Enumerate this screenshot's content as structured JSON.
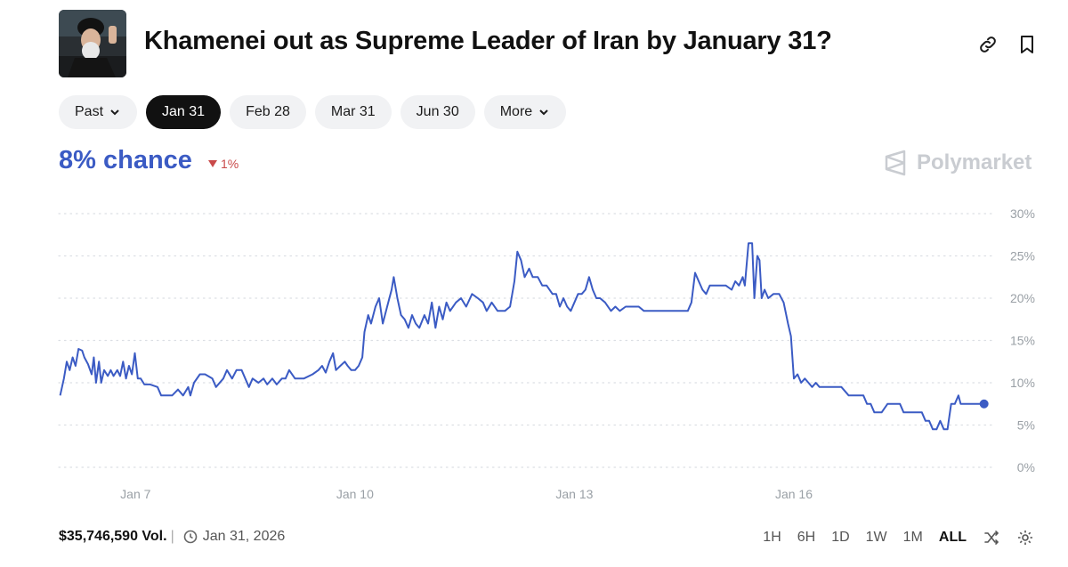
{
  "header": {
    "title": "Khamenei out as Supreme Leader of Iran by January 31?",
    "avatar_icon": "portrait-avatar",
    "actions": [
      "link-icon",
      "bookmark-icon"
    ]
  },
  "tabs": [
    {
      "label": "Past",
      "dropdown": true,
      "active": false
    },
    {
      "label": "Jan 31",
      "dropdown": false,
      "active": true
    },
    {
      "label": "Feb 28",
      "dropdown": false,
      "active": false
    },
    {
      "label": "Mar 31",
      "dropdown": false,
      "active": false
    },
    {
      "label": "Jun 30",
      "dropdown": false,
      "active": false
    },
    {
      "label": "More",
      "dropdown": true,
      "active": false
    }
  ],
  "summary": {
    "chance": "8% chance",
    "delta": "1%",
    "delta_direction": "down",
    "brand": "Polymarket"
  },
  "footer": {
    "volume": "$35,746,590 Vol.",
    "date": "Jan 31, 2026",
    "ranges": [
      "1H",
      "6H",
      "1D",
      "1W",
      "1M",
      "ALL"
    ],
    "active_range": "ALL"
  },
  "colors": {
    "line": "#3b5bc4",
    "delta_down": "#c94a4a",
    "grid": "#dcdfe4"
  },
  "chart_data": {
    "type": "line",
    "title": "",
    "xlabel": "",
    "ylabel": "",
    "ylim": [
      0,
      30
    ],
    "xlim": [
      5.95,
      18.75
    ],
    "y_ticks": [
      0,
      5,
      10,
      15,
      20,
      25,
      30
    ],
    "y_tick_labels": [
      "0%",
      "5%",
      "10%",
      "15%",
      "20%",
      "25%",
      "30%"
    ],
    "x_ticks": [
      7,
      10,
      13,
      16
    ],
    "x_tick_labels": [
      "Jan 7",
      "Jan 10",
      "Jan 13",
      "Jan 16"
    ],
    "x_unit": "day of January 2026",
    "grid": true,
    "series": [
      {
        "values": [
          [
            5.97,
            8.5
          ],
          [
            6.02,
            10.5
          ],
          [
            6.06,
            12.5
          ],
          [
            6.1,
            11.5
          ],
          [
            6.14,
            13
          ],
          [
            6.18,
            12
          ],
          [
            6.22,
            14
          ],
          [
            6.27,
            13.8
          ],
          [
            6.3,
            13
          ],
          [
            6.35,
            12.2
          ],
          [
            6.4,
            11
          ],
          [
            6.43,
            13
          ],
          [
            6.46,
            10
          ],
          [
            6.5,
            12.5
          ],
          [
            6.53,
            10
          ],
          [
            6.57,
            11.5
          ],
          [
            6.62,
            10.8
          ],
          [
            6.66,
            11.5
          ],
          [
            6.7,
            10.8
          ],
          [
            6.75,
            11.5
          ],
          [
            6.79,
            10.8
          ],
          [
            6.83,
            12.5
          ],
          [
            6.87,
            10.5
          ],
          [
            6.91,
            12
          ],
          [
            6.95,
            11
          ],
          [
            6.99,
            13.5
          ],
          [
            7.03,
            10.5
          ],
          [
            7.07,
            10.5
          ],
          [
            7.12,
            9.8
          ],
          [
            7.2,
            9.8
          ],
          [
            7.3,
            9.5
          ],
          [
            7.35,
            8.5
          ],
          [
            7.5,
            8.5
          ],
          [
            7.58,
            9.2
          ],
          [
            7.65,
            8.5
          ],
          [
            7.72,
            9.5
          ],
          [
            7.75,
            8.5
          ],
          [
            7.8,
            10
          ],
          [
            7.88,
            11
          ],
          [
            7.95,
            11
          ],
          [
            8.05,
            10.5
          ],
          [
            8.1,
            9.5
          ],
          [
            8.2,
            10.5
          ],
          [
            8.25,
            11.5
          ],
          [
            8.32,
            10.5
          ],
          [
            8.38,
            11.5
          ],
          [
            8.45,
            11.5
          ],
          [
            8.5,
            10.5
          ],
          [
            8.55,
            9.5
          ],
          [
            8.6,
            10.5
          ],
          [
            8.68,
            10
          ],
          [
            8.75,
            10.5
          ],
          [
            8.8,
            9.8
          ],
          [
            8.87,
            10.5
          ],
          [
            8.93,
            9.8
          ],
          [
            9.0,
            10.5
          ],
          [
            9.05,
            10.5
          ],
          [
            9.1,
            11.5
          ],
          [
            9.18,
            10.5
          ],
          [
            9.3,
            10.5
          ],
          [
            9.42,
            11
          ],
          [
            9.5,
            11.5
          ],
          [
            9.55,
            12
          ],
          [
            9.6,
            11.2
          ],
          [
            9.65,
            12.5
          ],
          [
            9.7,
            13.5
          ],
          [
            9.74,
            11.5
          ],
          [
            9.8,
            12
          ],
          [
            9.86,
            12.5
          ],
          [
            9.9,
            12
          ],
          [
            9.95,
            11.5
          ],
          [
            10.0,
            11.5
          ],
          [
            10.05,
            12
          ],
          [
            10.1,
            13
          ],
          [
            10.13,
            16
          ],
          [
            10.18,
            18
          ],
          [
            10.22,
            17
          ],
          [
            10.28,
            19
          ],
          [
            10.33,
            20
          ],
          [
            10.38,
            17
          ],
          [
            10.44,
            19
          ],
          [
            10.5,
            21
          ],
          [
            10.53,
            22.5
          ],
          [
            10.58,
            20
          ],
          [
            10.63,
            18
          ],
          [
            10.68,
            17.5
          ],
          [
            10.73,
            16.5
          ],
          [
            10.78,
            18
          ],
          [
            10.83,
            17
          ],
          [
            10.88,
            16.5
          ],
          [
            10.95,
            18
          ],
          [
            11.0,
            17
          ],
          [
            11.05,
            19.5
          ],
          [
            11.1,
            16.5
          ],
          [
            11.15,
            19
          ],
          [
            11.2,
            17.5
          ],
          [
            11.25,
            19.5
          ],
          [
            11.3,
            18.5
          ],
          [
            11.38,
            19.5
          ],
          [
            11.45,
            20
          ],
          [
            11.52,
            19
          ],
          [
            11.6,
            20.5
          ],
          [
            11.68,
            20
          ],
          [
            11.75,
            19.5
          ],
          [
            11.8,
            18.5
          ],
          [
            11.87,
            19.5
          ],
          [
            11.95,
            18.5
          ],
          [
            12.05,
            18.5
          ],
          [
            12.12,
            19
          ],
          [
            12.18,
            22
          ],
          [
            12.22,
            25.5
          ],
          [
            12.27,
            24.5
          ],
          [
            12.32,
            22.5
          ],
          [
            12.38,
            23.5
          ],
          [
            12.43,
            22.5
          ],
          [
            12.5,
            22.5
          ],
          [
            12.56,
            21.5
          ],
          [
            12.62,
            21.5
          ],
          [
            12.7,
            20.5
          ],
          [
            12.75,
            20.5
          ],
          [
            12.8,
            19
          ],
          [
            12.85,
            20
          ],
          [
            12.9,
            19
          ],
          [
            12.95,
            18.5
          ],
          [
            13.0,
            19.5
          ],
          [
            13.05,
            20.5
          ],
          [
            13.1,
            20.5
          ],
          [
            13.15,
            21
          ],
          [
            13.2,
            22.5
          ],
          [
            13.25,
            21
          ],
          [
            13.3,
            20
          ],
          [
            13.35,
            20
          ],
          [
            13.42,
            19.5
          ],
          [
            13.5,
            18.5
          ],
          [
            13.56,
            19
          ],
          [
            13.62,
            18.5
          ],
          [
            13.7,
            19
          ],
          [
            13.8,
            19
          ],
          [
            13.88,
            19
          ],
          [
            13.95,
            18.5
          ],
          [
            14.05,
            18.5
          ],
          [
            14.15,
            18.5
          ],
          [
            14.25,
            18.5
          ],
          [
            14.35,
            18.5
          ],
          [
            14.45,
            18.5
          ],
          [
            14.55,
            18.5
          ],
          [
            14.6,
            19.5
          ],
          [
            14.65,
            23
          ],
          [
            14.7,
            22
          ],
          [
            14.75,
            21
          ],
          [
            14.8,
            20.5
          ],
          [
            14.85,
            21.5
          ],
          [
            14.92,
            21.5
          ],
          [
            15.0,
            21.5
          ],
          [
            15.07,
            21.5
          ],
          [
            15.15,
            21
          ],
          [
            15.2,
            22
          ],
          [
            15.25,
            21.5
          ],
          [
            15.3,
            22.5
          ],
          [
            15.33,
            21.5
          ],
          [
            15.38,
            26.5
          ],
          [
            15.43,
            26.5
          ],
          [
            15.46,
            20
          ],
          [
            15.5,
            25
          ],
          [
            15.53,
            24.5
          ],
          [
            15.56,
            20
          ],
          [
            15.6,
            21
          ],
          [
            15.65,
            20
          ],
          [
            15.72,
            20.5
          ],
          [
            15.8,
            20.5
          ],
          [
            15.86,
            19.5
          ],
          [
            15.92,
            17
          ],
          [
            15.96,
            15.5
          ],
          [
            16.0,
            10.5
          ],
          [
            16.05,
            11
          ],
          [
            16.1,
            10
          ],
          [
            16.15,
            10.5
          ],
          [
            16.2,
            10
          ],
          [
            16.25,
            9.5
          ],
          [
            16.3,
            10
          ],
          [
            16.35,
            9.5
          ],
          [
            16.45,
            9.5
          ],
          [
            16.55,
            9.5
          ],
          [
            16.65,
            9.5
          ],
          [
            16.75,
            8.5
          ],
          [
            16.85,
            8.5
          ],
          [
            16.95,
            8.5
          ],
          [
            17.0,
            7.5
          ],
          [
            17.05,
            7.5
          ],
          [
            17.1,
            6.5
          ],
          [
            17.2,
            6.5
          ],
          [
            17.28,
            7.5
          ],
          [
            17.35,
            7.5
          ],
          [
            17.45,
            7.5
          ],
          [
            17.5,
            6.5
          ],
          [
            17.6,
            6.5
          ],
          [
            17.75,
            6.5
          ],
          [
            17.8,
            5.5
          ],
          [
            17.85,
            5.5
          ],
          [
            17.9,
            4.5
          ],
          [
            17.95,
            4.5
          ],
          [
            18.0,
            5.5
          ],
          [
            18.05,
            4.5
          ],
          [
            18.1,
            4.5
          ],
          [
            18.15,
            7.5
          ],
          [
            18.2,
            7.5
          ],
          [
            18.25,
            8.5
          ],
          [
            18.28,
            7.5
          ],
          [
            18.4,
            7.5
          ],
          [
            18.5,
            7.5
          ],
          [
            18.6,
            7.5
          ]
        ]
      }
    ],
    "end_marker": [
      18.6,
      7.5
    ]
  }
}
